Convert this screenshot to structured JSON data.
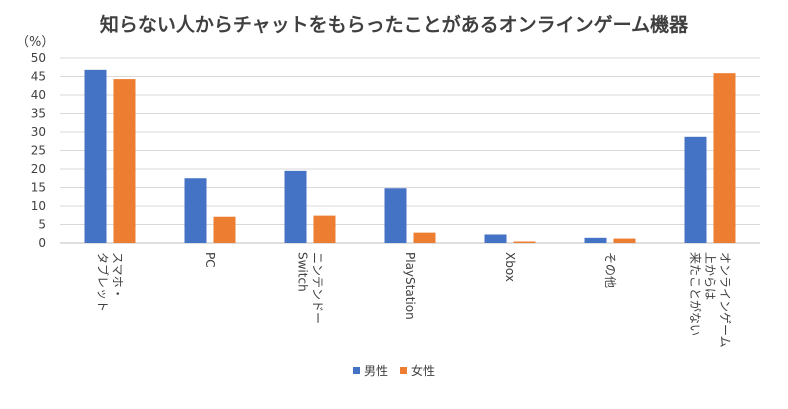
{
  "chart_data": {
    "type": "bar",
    "title": "知らない人からチャットをもらったことがあるオンラインゲーム機器",
    "unit_label": "（%）",
    "ylim": [
      0,
      50
    ],
    "yticks": [
      0,
      5,
      10,
      15,
      20,
      25,
      30,
      35,
      40,
      45,
      50
    ],
    "grid": true,
    "legend_position": "bottom",
    "categories": [
      [
        "スマホ・",
        "タブレット"
      ],
      [
        "PC"
      ],
      [
        "ニンテンドー",
        "Switch"
      ],
      [
        "PlayStation"
      ],
      [
        "Xbox"
      ],
      [
        "その他"
      ],
      [
        "オンラインゲーム",
        "上からは",
        "来たことがない"
      ]
    ],
    "series": [
      {
        "name": "男性",
        "color": "#4472c4",
        "values": [
          46.8,
          17.5,
          19.5,
          14.8,
          2.3,
          1.4,
          28.7
        ]
      },
      {
        "name": "女性",
        "color": "#ed7d31",
        "values": [
          44.3,
          7.1,
          7.4,
          2.8,
          0.4,
          1.2,
          45.9
        ]
      }
    ]
  }
}
